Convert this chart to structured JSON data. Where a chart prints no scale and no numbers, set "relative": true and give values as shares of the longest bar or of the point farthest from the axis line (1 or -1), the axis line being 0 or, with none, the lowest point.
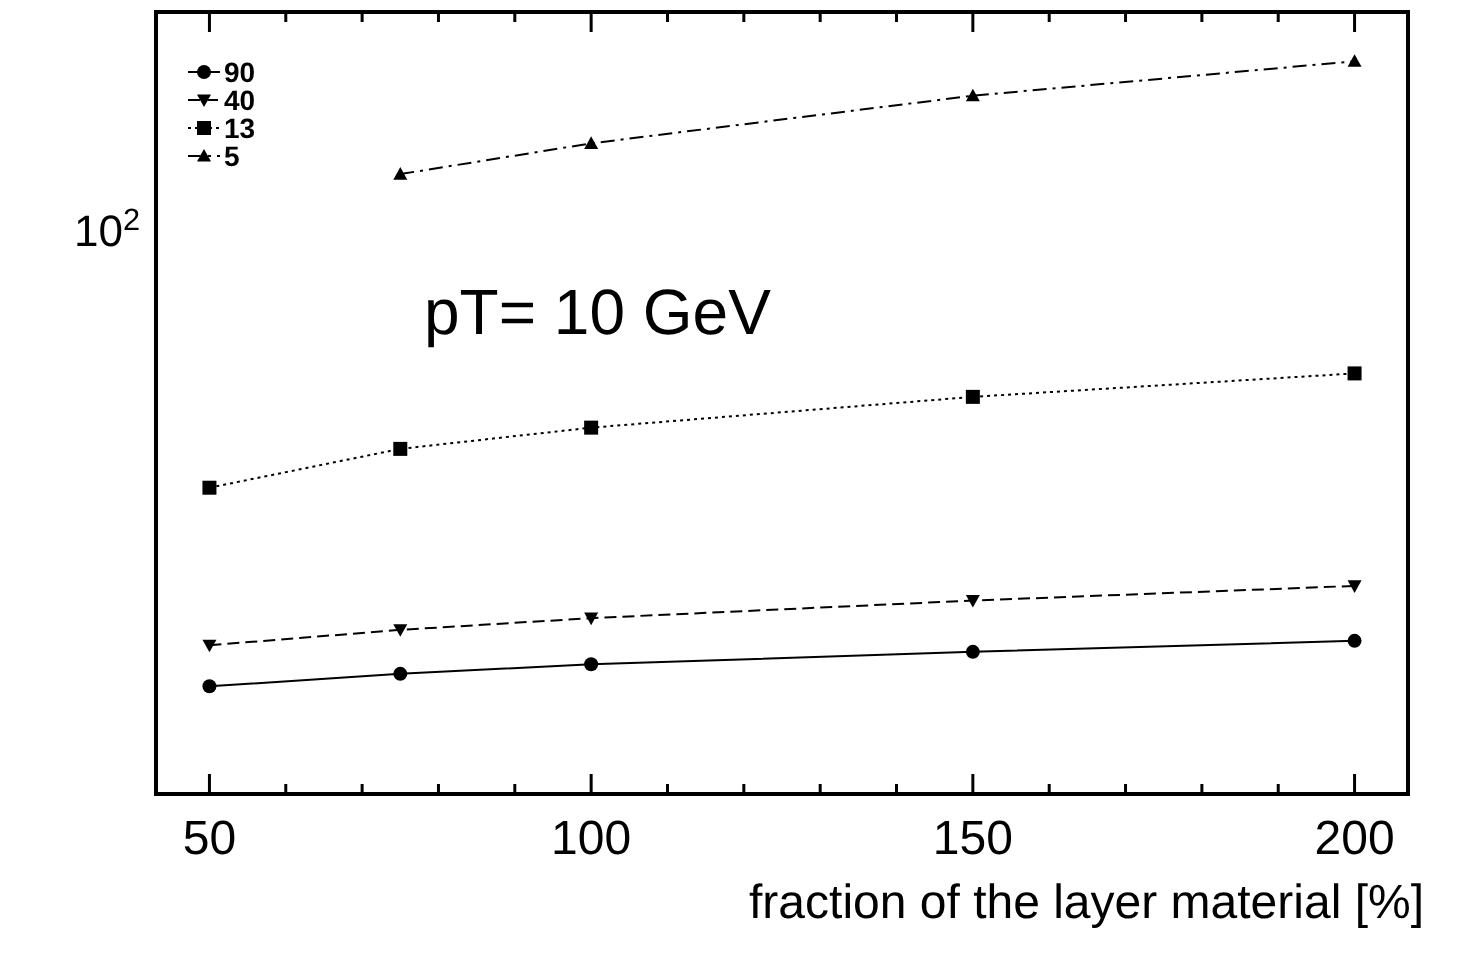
{
  "chart_data": {
    "type": "line",
    "relative": true,
    "annotations": [
      "pT= 10 GeV",
      "10$^{2}$"
    ],
    "xlabel": "fraction of the layer material [%]",
    "x": [
      50,
      75,
      100,
      150,
      200
    ],
    "xlim": [
      43,
      207
    ],
    "xticks": [
      50,
      {
        "value": 60,
        "label": null
      },
      {
        "value": 70,
        "label": null
      },
      {
        "value": 80,
        "label": null
      },
      {
        "value": 90,
        "label": null
      },
      100,
      {
        "value": 110,
        "label": null
      },
      {
        "value": 120,
        "label": null
      },
      {
        "value": 130,
        "label": null
      },
      {
        "value": 140,
        "label": null
      },
      150,
      {
        "value": 160,
        "label": null
      },
      {
        "value": 170,
        "label": null
      },
      {
        "value": 180,
        "label": null
      },
      {
        "value": 190,
        "label": null
      },
      200
    ],
    "legend": "top left",
    "series": [
      {
        "name": "90",
        "color": "#000000",
        "marker": "circle",
        "line_style": "solid",
        "values": [
          0.147,
          0.164,
          0.177,
          0.194,
          0.209
        ]
      },
      {
        "name": "40",
        "color": "#000000",
        "marker": "triangle-down",
        "line_style": "dashed",
        "values": [
          0.203,
          0.224,
          0.24,
          0.264,
          0.284
        ]
      },
      {
        "name": "13",
        "color": "#000000",
        "marker": "square",
        "line_style": "dotted",
        "values": [
          0.418,
          0.471,
          0.5,
          0.542,
          0.574
        ]
      },
      {
        "name": "5",
        "color": "#000000",
        "marker": "triangle",
        "line_style": "dashdot",
        "values": [
          null,
          0.846,
          0.888,
          0.953,
          1
        ]
      }
    ]
  }
}
